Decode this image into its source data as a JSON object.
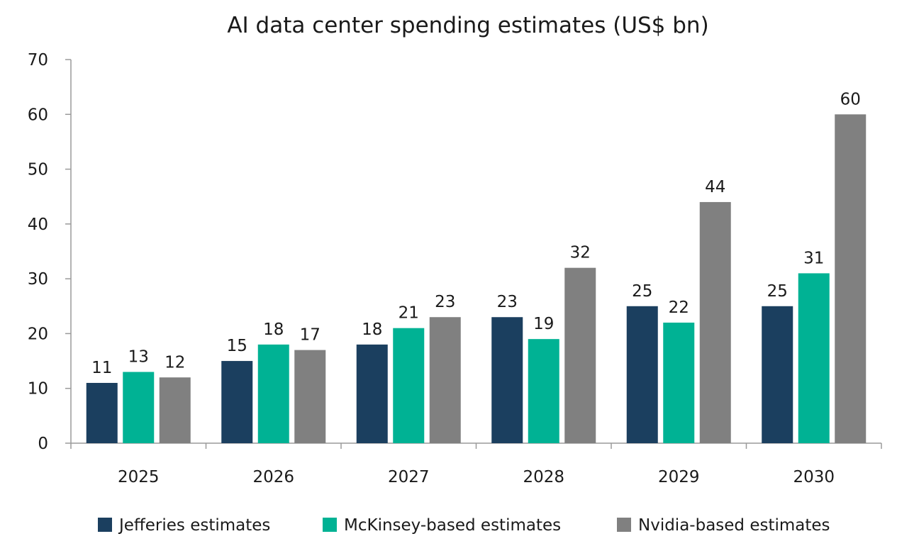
{
  "chart_data": {
    "type": "bar",
    "title": "AI data center spending estimates (US$ bn)",
    "xlabel": "",
    "ylabel": "",
    "ylim": [
      0,
      70
    ],
    "yticks": [
      0,
      10,
      20,
      30,
      40,
      50,
      60,
      70
    ],
    "grid": false,
    "legend_position": "bottom",
    "categories": [
      "2025",
      "2026",
      "2027",
      "2028",
      "2029",
      "2030"
    ],
    "series": [
      {
        "name": "Jefferies estimates",
        "color": "#1b3f5f",
        "values": [
          11,
          15,
          18,
          23,
          25,
          25
        ]
      },
      {
        "name": "McKinsey-based estimates",
        "color": "#00b294",
        "values": [
          13,
          18,
          21,
          19,
          22,
          31
        ]
      },
      {
        "name": "Nvidia-based estimates",
        "color": "#808080",
        "values": [
          12,
          17,
          23,
          32,
          44,
          60
        ]
      }
    ]
  }
}
